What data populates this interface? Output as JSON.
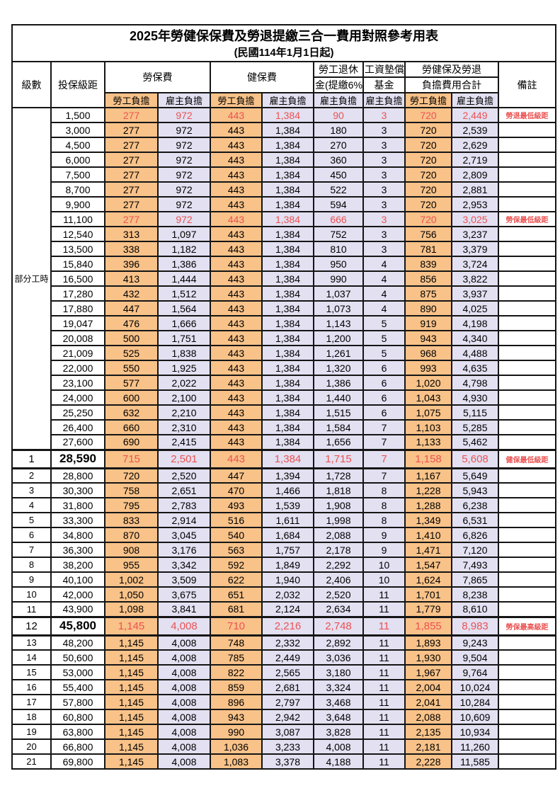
{
  "title": "2025年勞健保保費及勞退提繳三合一費用對照參考用表",
  "subtitle": "(民國114年1月1日起)",
  "colors": {
    "employee_bg": "#F8C289",
    "employer_bg": "#E2E0F1",
    "highlight_red": "#EC5252",
    "border": "#151515"
  },
  "header": {
    "level": "級數",
    "bracket": "投保級距",
    "labor": "勞保費",
    "health": "健保費",
    "pension_line1": "勞工退休",
    "pension_line2": "金(提繳6%)",
    "wage_line1": "工資墊償",
    "wage_line2": "基金",
    "total_line1": "勞健保及勞退",
    "total_line2": "負擔費用合計",
    "remark": "備註",
    "employee": "勞工負擔",
    "employer": "雇主負擔"
  },
  "part_time_label": "部分工時",
  "rows": [
    {
      "level": "",
      "bracket": "1,500",
      "values": [
        "277",
        "972",
        "443",
        "1,384",
        "90",
        "3",
        "720",
        "2,449"
      ],
      "remark": "勞退最低級距",
      "red": true,
      "big": false
    },
    {
      "level": "",
      "bracket": "3,000",
      "values": [
        "277",
        "972",
        "443",
        "1,384",
        "180",
        "3",
        "720",
        "2,539"
      ],
      "remark": "",
      "red": false,
      "big": false
    },
    {
      "level": "",
      "bracket": "4,500",
      "values": [
        "277",
        "972",
        "443",
        "1,384",
        "270",
        "3",
        "720",
        "2,629"
      ],
      "remark": "",
      "red": false,
      "big": false
    },
    {
      "level": "",
      "bracket": "6,000",
      "values": [
        "277",
        "972",
        "443",
        "1,384",
        "360",
        "3",
        "720",
        "2,719"
      ],
      "remark": "",
      "red": false,
      "big": false
    },
    {
      "level": "",
      "bracket": "7,500",
      "values": [
        "277",
        "972",
        "443",
        "1,384",
        "450",
        "3",
        "720",
        "2,809"
      ],
      "remark": "",
      "red": false,
      "big": false
    },
    {
      "level": "",
      "bracket": "8,700",
      "values": [
        "277",
        "972",
        "443",
        "1,384",
        "522",
        "3",
        "720",
        "2,881"
      ],
      "remark": "",
      "red": false,
      "big": false
    },
    {
      "level": "",
      "bracket": "9,900",
      "values": [
        "277",
        "972",
        "443",
        "1,384",
        "594",
        "3",
        "720",
        "2,953"
      ],
      "remark": "",
      "red": false,
      "big": false
    },
    {
      "level": "",
      "bracket": "11,100",
      "values": [
        "277",
        "972",
        "443",
        "1,384",
        "666",
        "3",
        "720",
        "3,025"
      ],
      "remark": "勞保最低級距",
      "red": true,
      "big": false
    },
    {
      "level": "",
      "bracket": "12,540",
      "values": [
        "313",
        "1,097",
        "443",
        "1,384",
        "752",
        "3",
        "756",
        "3,237"
      ],
      "remark": "",
      "red": false,
      "big": false
    },
    {
      "level": "",
      "bracket": "13,500",
      "values": [
        "338",
        "1,182",
        "443",
        "1,384",
        "810",
        "3",
        "781",
        "3,379"
      ],
      "remark": "",
      "red": false,
      "big": false
    },
    {
      "level": "",
      "bracket": "15,840",
      "values": [
        "396",
        "1,386",
        "443",
        "1,384",
        "950",
        "4",
        "839",
        "3,724"
      ],
      "remark": "",
      "red": false,
      "big": false
    },
    {
      "level": "",
      "bracket": "16,500",
      "values": [
        "413",
        "1,444",
        "443",
        "1,384",
        "990",
        "4",
        "856",
        "3,822"
      ],
      "remark": "",
      "red": false,
      "big": false
    },
    {
      "level": "",
      "bracket": "17,280",
      "values": [
        "432",
        "1,512",
        "443",
        "1,384",
        "1,037",
        "4",
        "875",
        "3,937"
      ],
      "remark": "",
      "red": false,
      "big": false
    },
    {
      "level": "",
      "bracket": "17,880",
      "values": [
        "447",
        "1,564",
        "443",
        "1,384",
        "1,073",
        "4",
        "890",
        "4,025"
      ],
      "remark": "",
      "red": false,
      "big": false
    },
    {
      "level": "",
      "bracket": "19,047",
      "values": [
        "476",
        "1,666",
        "443",
        "1,384",
        "1,143",
        "5",
        "919",
        "4,198"
      ],
      "remark": "",
      "red": false,
      "big": false
    },
    {
      "level": "",
      "bracket": "20,008",
      "values": [
        "500",
        "1,751",
        "443",
        "1,384",
        "1,200",
        "5",
        "943",
        "4,340"
      ],
      "remark": "",
      "red": false,
      "big": false
    },
    {
      "level": "",
      "bracket": "21,009",
      "values": [
        "525",
        "1,838",
        "443",
        "1,384",
        "1,261",
        "5",
        "968",
        "4,488"
      ],
      "remark": "",
      "red": false,
      "big": false
    },
    {
      "level": "",
      "bracket": "22,000",
      "values": [
        "550",
        "1,925",
        "443",
        "1,384",
        "1,320",
        "6",
        "993",
        "4,635"
      ],
      "remark": "",
      "red": false,
      "big": false
    },
    {
      "level": "",
      "bracket": "23,100",
      "values": [
        "577",
        "2,022",
        "443",
        "1,384",
        "1,386",
        "6",
        "1,020",
        "4,798"
      ],
      "remark": "",
      "red": false,
      "big": false
    },
    {
      "level": "",
      "bracket": "24,000",
      "values": [
        "600",
        "2,100",
        "443",
        "1,384",
        "1,440",
        "6",
        "1,043",
        "4,930"
      ],
      "remark": "",
      "red": false,
      "big": false
    },
    {
      "level": "",
      "bracket": "25,250",
      "values": [
        "632",
        "2,210",
        "443",
        "1,384",
        "1,515",
        "6",
        "1,075",
        "5,115"
      ],
      "remark": "",
      "red": false,
      "big": false
    },
    {
      "level": "",
      "bracket": "26,400",
      "values": [
        "660",
        "2,310",
        "443",
        "1,384",
        "1,584",
        "7",
        "1,103",
        "5,285"
      ],
      "remark": "",
      "red": false,
      "big": false
    },
    {
      "level": "",
      "bracket": "27,600",
      "values": [
        "690",
        "2,415",
        "443",
        "1,384",
        "1,656",
        "7",
        "1,133",
        "5,462"
      ],
      "remark": "",
      "red": false,
      "big": false
    },
    {
      "level": "1",
      "bracket": "28,590",
      "values": [
        "715",
        "2,501",
        "443",
        "1,384",
        "1,715",
        "7",
        "1,158",
        "5,608"
      ],
      "remark": "健保最低級距",
      "red": true,
      "big": true
    },
    {
      "level": "2",
      "bracket": "28,800",
      "values": [
        "720",
        "2,520",
        "447",
        "1,394",
        "1,728",
        "7",
        "1,167",
        "5,649"
      ],
      "remark": "",
      "red": false,
      "big": false
    },
    {
      "level": "3",
      "bracket": "30,300",
      "values": [
        "758",
        "2,651",
        "470",
        "1,466",
        "1,818",
        "8",
        "1,228",
        "5,943"
      ],
      "remark": "",
      "red": false,
      "big": false
    },
    {
      "level": "4",
      "bracket": "31,800",
      "values": [
        "795",
        "2,783",
        "493",
        "1,539",
        "1,908",
        "8",
        "1,288",
        "6,238"
      ],
      "remark": "",
      "red": false,
      "big": false
    },
    {
      "level": "5",
      "bracket": "33,300",
      "values": [
        "833",
        "2,914",
        "516",
        "1,611",
        "1,998",
        "8",
        "1,349",
        "6,531"
      ],
      "remark": "",
      "red": false,
      "big": false
    },
    {
      "level": "6",
      "bracket": "34,800",
      "values": [
        "870",
        "3,045",
        "540",
        "1,684",
        "2,088",
        "9",
        "1,410",
        "6,826"
      ],
      "remark": "",
      "red": false,
      "big": false
    },
    {
      "level": "7",
      "bracket": "36,300",
      "values": [
        "908",
        "3,176",
        "563",
        "1,757",
        "2,178",
        "9",
        "1,471",
        "7,120"
      ],
      "remark": "",
      "red": false,
      "big": false
    },
    {
      "level": "8",
      "bracket": "38,200",
      "values": [
        "955",
        "3,342",
        "592",
        "1,849",
        "2,292",
        "10",
        "1,547",
        "7,493"
      ],
      "remark": "",
      "red": false,
      "big": false
    },
    {
      "level": "9",
      "bracket": "40,100",
      "values": [
        "1,002",
        "3,509",
        "622",
        "1,940",
        "2,406",
        "10",
        "1,624",
        "7,865"
      ],
      "remark": "",
      "red": false,
      "big": false
    },
    {
      "level": "10",
      "bracket": "42,000",
      "values": [
        "1,050",
        "3,675",
        "651",
        "2,032",
        "2,520",
        "11",
        "1,701",
        "8,238"
      ],
      "remark": "",
      "red": false,
      "big": false
    },
    {
      "level": "11",
      "bracket": "43,900",
      "values": [
        "1,098",
        "3,841",
        "681",
        "2,124",
        "2,634",
        "11",
        "1,779",
        "8,610"
      ],
      "remark": "",
      "red": false,
      "big": false
    },
    {
      "level": "12",
      "bracket": "45,800",
      "values": [
        "1,145",
        "4,008",
        "710",
        "2,216",
        "2,748",
        "11",
        "1,855",
        "8,983"
      ],
      "remark": "勞保最高級距",
      "red": true,
      "big": true
    },
    {
      "level": "13",
      "bracket": "48,200",
      "values": [
        "1,145",
        "4,008",
        "748",
        "2,332",
        "2,892",
        "11",
        "1,893",
        "9,243"
      ],
      "remark": "",
      "red": false,
      "big": false
    },
    {
      "level": "14",
      "bracket": "50,600",
      "values": [
        "1,145",
        "4,008",
        "785",
        "2,449",
        "3,036",
        "11",
        "1,930",
        "9,504"
      ],
      "remark": "",
      "red": false,
      "big": false
    },
    {
      "level": "15",
      "bracket": "53,000",
      "values": [
        "1,145",
        "4,008",
        "822",
        "2,565",
        "3,180",
        "11",
        "1,967",
        "9,764"
      ],
      "remark": "",
      "red": false,
      "big": false
    },
    {
      "level": "16",
      "bracket": "55,400",
      "values": [
        "1,145",
        "4,008",
        "859",
        "2,681",
        "3,324",
        "11",
        "2,004",
        "10,024"
      ],
      "remark": "",
      "red": false,
      "big": false
    },
    {
      "level": "17",
      "bracket": "57,800",
      "values": [
        "1,145",
        "4,008",
        "896",
        "2,797",
        "3,468",
        "11",
        "2,041",
        "10,284"
      ],
      "remark": "",
      "red": false,
      "big": false
    },
    {
      "level": "18",
      "bracket": "60,800",
      "values": [
        "1,145",
        "4,008",
        "943",
        "2,942",
        "3,648",
        "11",
        "2,088",
        "10,609"
      ],
      "remark": "",
      "red": false,
      "big": false
    },
    {
      "level": "19",
      "bracket": "63,800",
      "values": [
        "1,145",
        "4,008",
        "990",
        "3,087",
        "3,828",
        "11",
        "2,135",
        "10,934"
      ],
      "remark": "",
      "red": false,
      "big": false
    },
    {
      "level": "20",
      "bracket": "66,800",
      "values": [
        "1,145",
        "4,008",
        "1,036",
        "3,233",
        "4,008",
        "11",
        "2,181",
        "11,260"
      ],
      "remark": "",
      "red": false,
      "big": false
    },
    {
      "level": "21",
      "bracket": "69,800",
      "values": [
        "1,145",
        "4,008",
        "1,083",
        "3,378",
        "4,188",
        "11",
        "2,228",
        "11,585"
      ],
      "remark": "",
      "red": false,
      "big": false
    }
  ]
}
